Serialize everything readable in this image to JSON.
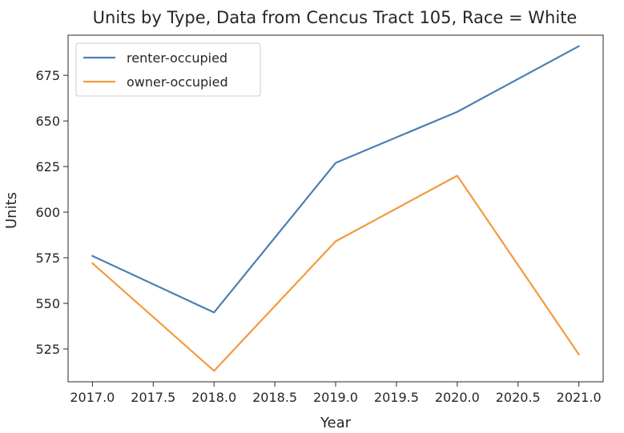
{
  "chart_data": {
    "type": "line",
    "title": "Units by Type, Data from Cencus Tract 105, Race = White",
    "xlabel": "Year",
    "ylabel": "Units",
    "x": [
      2017,
      2018,
      2019,
      2020,
      2021
    ],
    "xlim": [
      2016.8,
      2021.2
    ],
    "ylim": [
      507,
      697
    ],
    "xticks": [
      "2017.0",
      "2017.5",
      "2018.0",
      "2018.5",
      "2019.0",
      "2019.5",
      "2020.0",
      "2020.5",
      "2021.0"
    ],
    "yticks": [
      "525",
      "550",
      "575",
      "600",
      "625",
      "650",
      "675"
    ],
    "grid": false,
    "legend_position": "top-left",
    "series": [
      {
        "name": "renter-occupied",
        "color": "#4c7fb4",
        "values": [
          576,
          545,
          627,
          655,
          691
        ]
      },
      {
        "name": "owner-occupied",
        "color": "#f39a3f",
        "values": [
          572,
          513,
          584,
          620,
          522
        ]
      }
    ]
  }
}
